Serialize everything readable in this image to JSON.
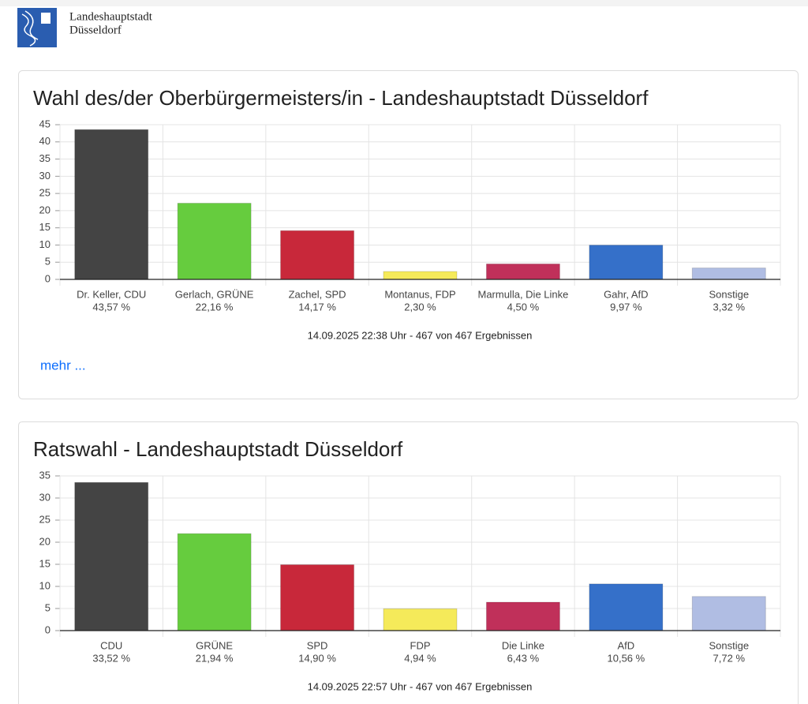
{
  "header": {
    "lines": [
      "Landeshauptstadt",
      "Düsseldorf"
    ]
  },
  "chart_data": [
    {
      "type": "bar",
      "title": "Wahl des/der Oberbürgermeisters/in - Landeshauptstadt Düsseldorf",
      "categories": [
        "Dr. Keller, CDU",
        "Gerlach, GRÜNE",
        "Zachel, SPD",
        "Montanus, FDP",
        "Marmulla, Die Linke",
        "Gahr, AfD",
        "Sonstige"
      ],
      "values": [
        43.57,
        22.16,
        14.17,
        2.3,
        4.5,
        9.97,
        3.32
      ],
      "value_labels": [
        "43,57 %",
        "22,16 %",
        "14,17 %",
        "2,30 %",
        "4,50 %",
        "9,97 %",
        "3,32 %"
      ],
      "colors": [
        "#444444",
        "#66cc3e",
        "#c8283a",
        "#f5ea5a",
        "#c0305a",
        "#3570c9",
        "#b0bde3"
      ],
      "ylim": [
        0,
        45
      ],
      "yticks": [
        0,
        5,
        10,
        15,
        20,
        25,
        30,
        35,
        40,
        45
      ],
      "grid": true,
      "caption": "14.09.2025 22:38 Uhr - 467 von 467 Ergebnissen",
      "link": "mehr ..."
    },
    {
      "type": "bar",
      "title": "Ratswahl - Landeshauptstadt Düsseldorf",
      "categories": [
        "CDU",
        "GRÜNE",
        "SPD",
        "FDP",
        "Die Linke",
        "AfD",
        "Sonstige"
      ],
      "values": [
        33.52,
        21.94,
        14.9,
        4.94,
        6.43,
        10.56,
        7.72
      ],
      "value_labels": [
        "33,52 %",
        "21,94 %",
        "14,90 %",
        "4,94 %",
        "6,43 %",
        "10,56 %",
        "7,72 %"
      ],
      "colors": [
        "#444444",
        "#66cc3e",
        "#c8283a",
        "#f5ea5a",
        "#c0305a",
        "#3570c9",
        "#b0bde3"
      ],
      "ylim": [
        0,
        35
      ],
      "yticks": [
        0,
        5,
        10,
        15,
        20,
        25,
        30,
        35
      ],
      "grid": true,
      "caption": "14.09.2025 22:57 Uhr - 467 von 467 Ergebnissen"
    }
  ]
}
